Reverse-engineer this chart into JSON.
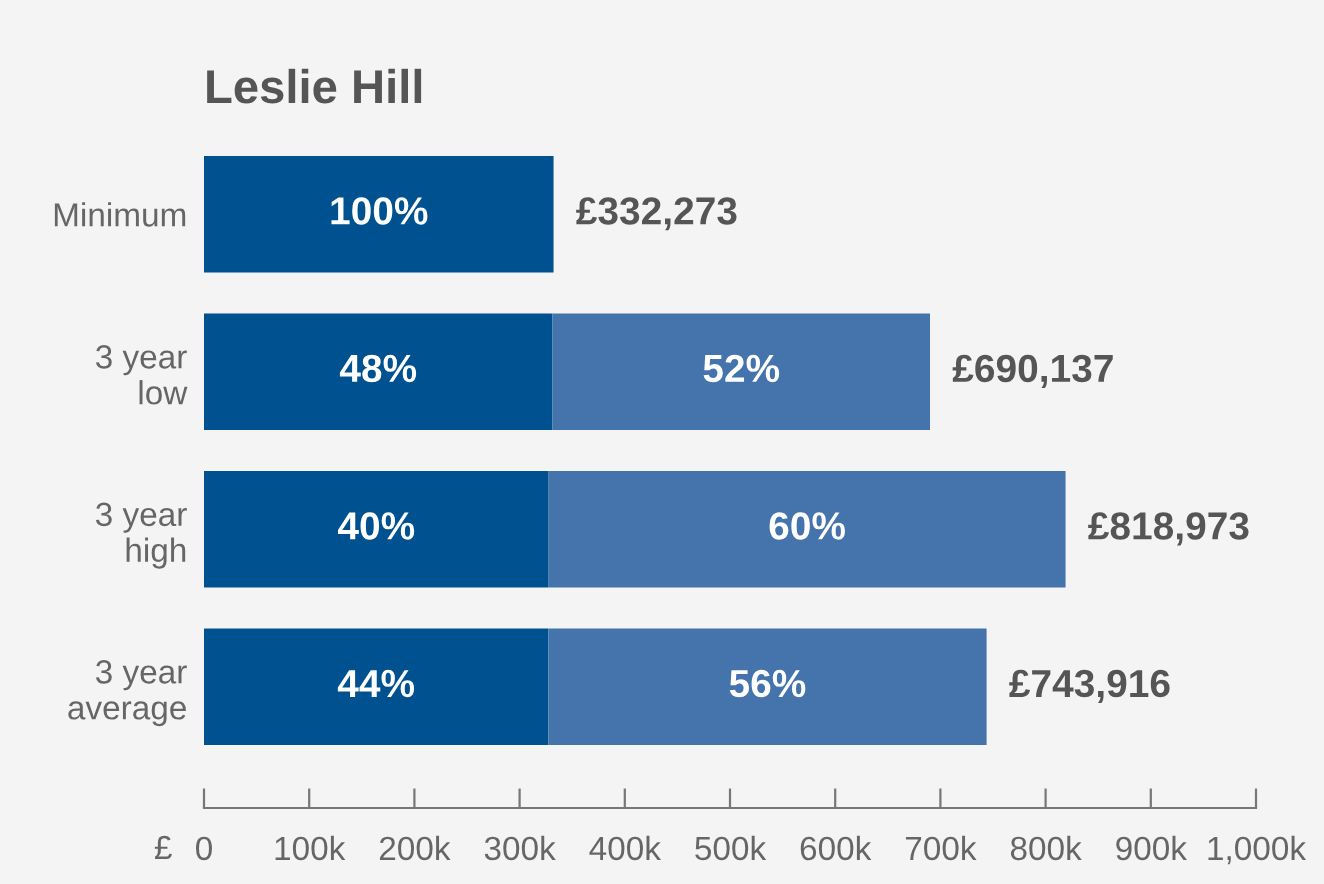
{
  "chart_data": {
    "type": "bar",
    "orientation": "horizontal",
    "stacked": true,
    "title": "Leslie Hill",
    "xlabel": "£",
    "categories": [
      "Minimum",
      "3 year\nlow",
      "3 year\nhigh",
      "3 year\naverage"
    ],
    "series": [
      {
        "color": "#00518f",
        "values": [
          332273,
          331266,
          327589,
          327323
        ]
      },
      {
        "color": "#4474ab",
        "values": [
          null,
          358871,
          491384,
          416593
        ]
      }
    ],
    "annotations": [
      "100%",
      "48%",
      "52%",
      "40%",
      "60%",
      "44%",
      "56%"
    ],
    "totals": [
      "£332,273",
      "£690,137",
      "£818,973",
      "£743,916"
    ],
    "xlim": [
      0,
      1000000
    ],
    "xticks": [
      0,
      {
        "value": 100000,
        "label": "100k"
      },
      {
        "value": 200000,
        "label": "200k"
      },
      {
        "value": 300000,
        "label": "300k"
      },
      {
        "value": 400000,
        "label": "400k"
      },
      {
        "value": 500000,
        "label": "500k"
      },
      {
        "value": 600000,
        "label": "600k"
      },
      {
        "value": 700000,
        "label": "700k"
      },
      {
        "value": 800000,
        "label": "800k"
      },
      {
        "value": 900000,
        "label": "900k"
      },
      {
        "value": 1000000,
        "label": "1,000k"
      }
    ],
    "grid": false,
    "legend": false
  }
}
